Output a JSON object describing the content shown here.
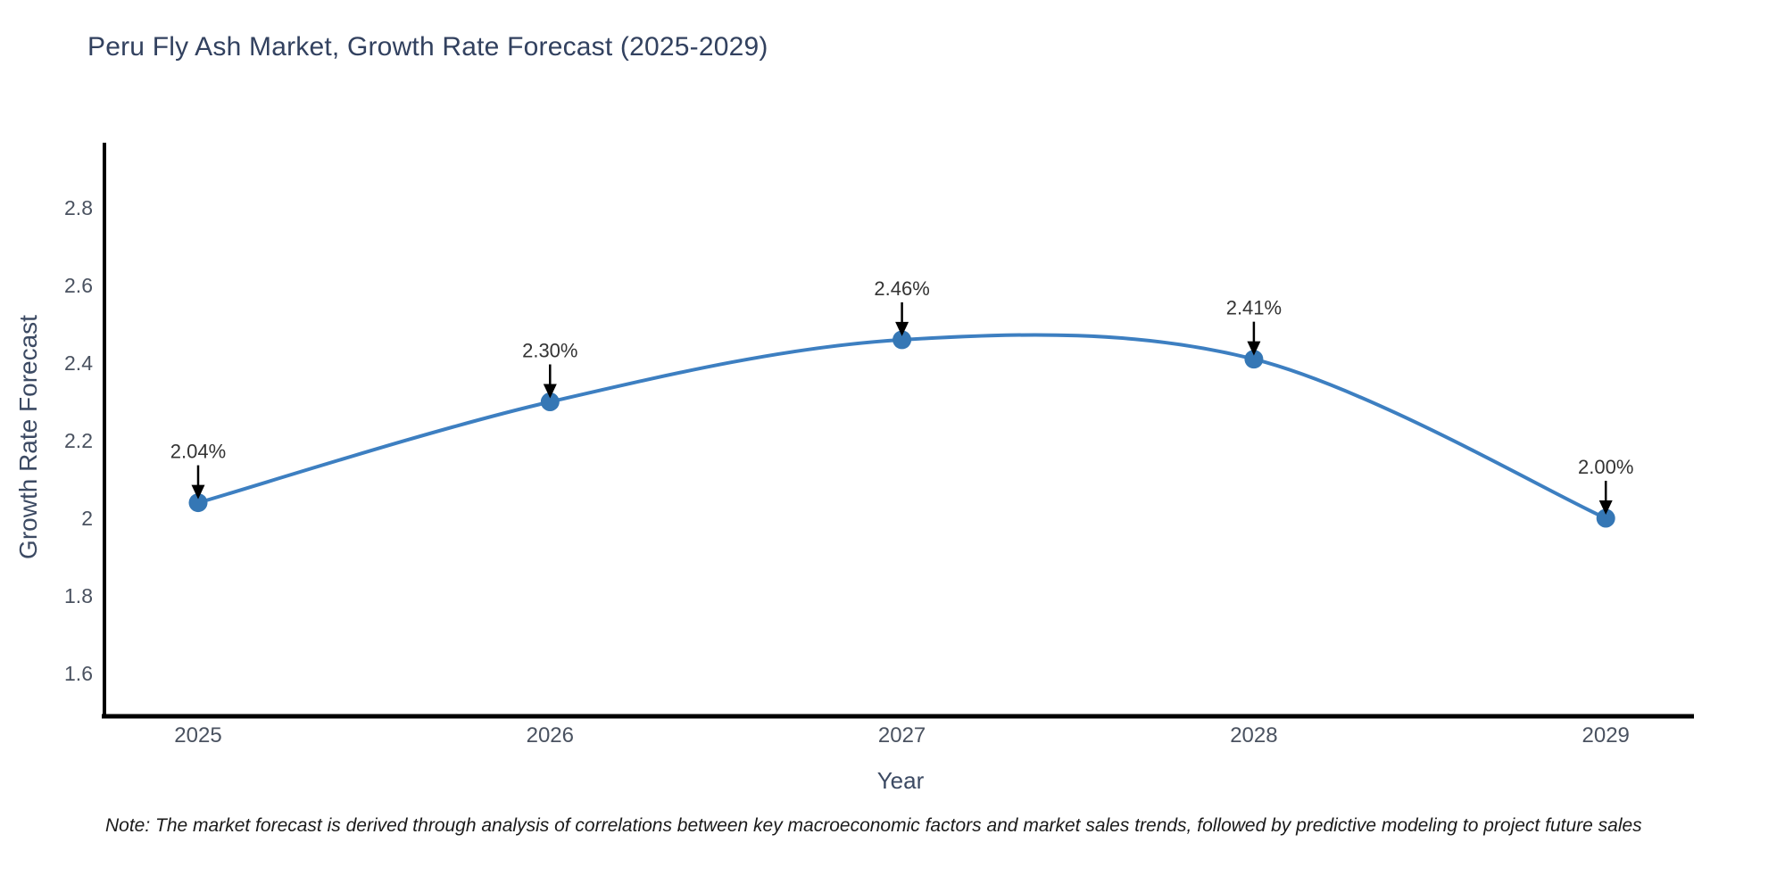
{
  "title": "Peru Fly Ash Market, Growth Rate Forecast (2025-2029)",
  "footnote": "Note: The market forecast is derived through analysis of correlations between key macroeconomic factors and market sales trends, followed by predictive modeling to project future sales",
  "chart_data": {
    "type": "line",
    "title": "Peru Fly Ash Market, Growth Rate Forecast (2025-2029)",
    "xlabel": "Year",
    "ylabel": "Growth Rate Forecast",
    "x": [
      2025,
      2026,
      2027,
      2028,
      2029
    ],
    "series": [
      {
        "name": "Growth Rate Forecast",
        "values": [
          2.04,
          2.3,
          2.46,
          2.41,
          2.0
        ]
      }
    ],
    "point_labels": [
      "2.04%",
      "2.30%",
      "2.46%",
      "2.41%",
      "2.00%"
    ],
    "yticks": [
      1.6,
      1.8,
      2,
      2.2,
      2.4,
      2.6,
      2.8
    ],
    "ylim": [
      1.49,
      2.97
    ],
    "line_shape": "spline",
    "grid": false,
    "legend": "none",
    "annotation_style": "black-down-arrows",
    "colors": {
      "line": "#3d7fc1",
      "marker": "#3577b5",
      "arrow": "#000000",
      "axis_line": "#000000",
      "title": "#32415f",
      "axis_label": "#3c4a63",
      "tick": "#4a5260",
      "note": "#1a1a1a",
      "background": "#ffffff"
    }
  }
}
